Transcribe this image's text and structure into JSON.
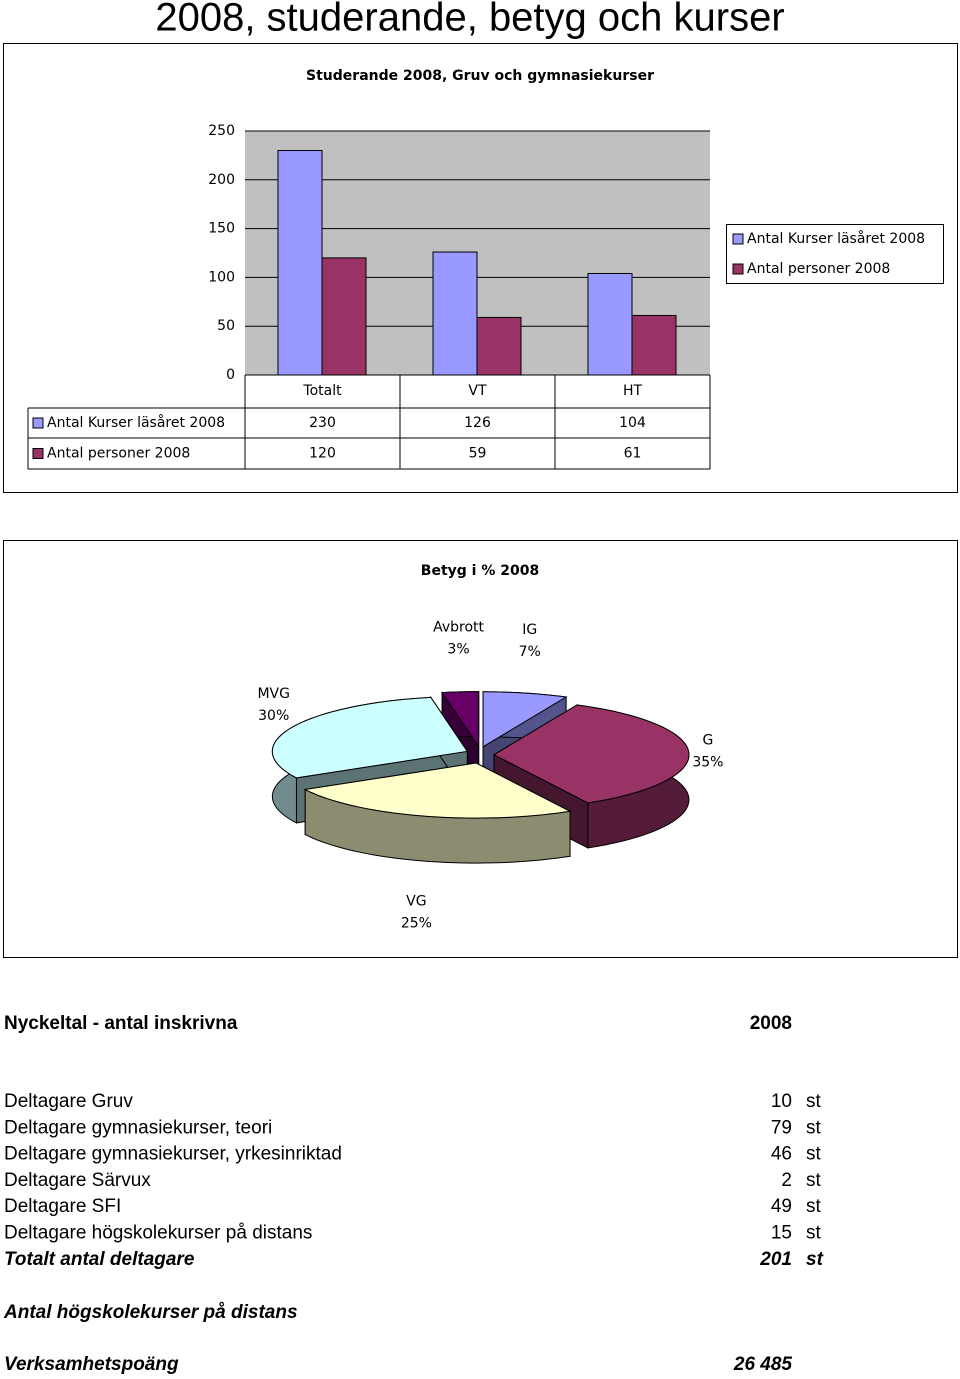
{
  "title": "2008, studerande, betyg och kurser",
  "chart_data": [
    {
      "type": "bar",
      "title": "Studerande 2008, Gruv och gymnasiekurser",
      "categories": [
        "Totalt",
        "VT",
        "HT"
      ],
      "series": [
        {
          "name": "Antal Kurser läsåret 2008",
          "color": "#9999ff",
          "values": [
            230,
            126,
            104
          ]
        },
        {
          "name": "Antal personer 2008",
          "color": "#993366",
          "values": [
            120,
            59,
            61
          ]
        }
      ],
      "ylim": [
        0,
        250
      ],
      "yticks": [
        0,
        50,
        100,
        150,
        200,
        250
      ],
      "grid": true,
      "legend": "right",
      "data_table": true
    },
    {
      "type": "pie",
      "title": "Betyg i % 2008",
      "categories": [
        "IG",
        "G",
        "VG",
        "MVG",
        "Avbrott"
      ],
      "values": [
        7,
        35,
        25,
        30,
        3
      ],
      "value_labels": [
        "7%",
        "35%",
        "25%",
        "30%",
        "3%"
      ],
      "colors": [
        "#9999ff",
        "#993366",
        "#ffffcc",
        "#ccffff",
        "#660066"
      ]
    }
  ],
  "table": {
    "header": [
      "Nyckeltal - antal inskrivna",
      "2008"
    ],
    "rows": [
      [
        "Deltagare Gruv",
        10,
        "st"
      ],
      [
        "Deltagare gymnasiekurser, teori",
        79,
        "st"
      ],
      [
        "Deltagare gymnasiekurser, yrkesinriktad",
        46,
        "st"
      ],
      [
        "Deltagare Särvux",
        2,
        "st"
      ],
      [
        "Deltagare SFI",
        49,
        "st"
      ],
      [
        "Deltagare högskolekurser på distans",
        15,
        "st"
      ],
      [
        "Totalt antal deltagare",
        201,
        "st"
      ]
    ],
    "notes": [
      [
        "Antal högskolekurser på distans"
      ],
      [
        "Verksamhetspoäng",
        "26 485"
      ]
    ]
  }
}
